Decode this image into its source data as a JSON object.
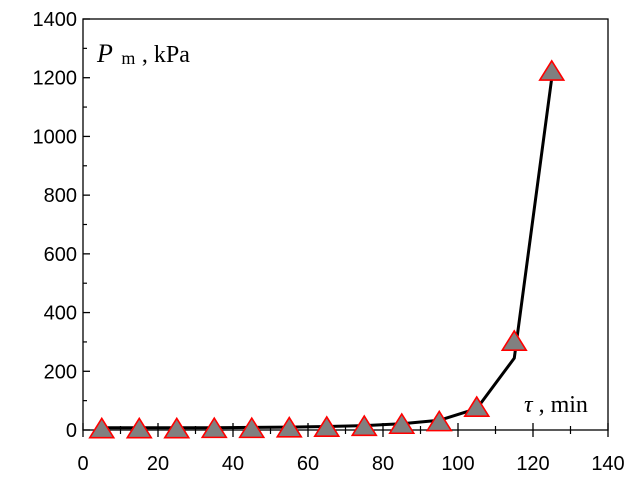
{
  "chart_data": {
    "type": "line",
    "title": "",
    "ylabel": {
      "symbol": "P",
      "subscript": "m",
      "unit": ", kPa"
    },
    "xlabel": {
      "symbol": "τ",
      "unit": ", min"
    },
    "xlim": [
      0,
      140
    ],
    "ylim": [
      0,
      1400
    ],
    "x_ticks": [
      0,
      20,
      40,
      60,
      80,
      100,
      120,
      140
    ],
    "y_ticks": [
      0,
      200,
      400,
      600,
      800,
      1000,
      1200,
      1400
    ],
    "x_tick_labels": [
      "0",
      "20",
      "40",
      "60",
      "80",
      "100",
      "120",
      "140"
    ],
    "y_tick_labels": [
      "0",
      "200",
      "400",
      "600",
      "800",
      "1000",
      "1200",
      "1400"
    ],
    "grid": false,
    "series": [
      {
        "role": "line",
        "color": "#000000",
        "x": [
          5,
          15,
          25,
          35,
          45,
          55,
          65,
          75,
          85,
          95,
          105,
          115,
          125
        ],
        "y": [
          8,
          8,
          8,
          8,
          9,
          10,
          12,
          15,
          21,
          33,
          73,
          245,
          1200
        ]
      },
      {
        "role": "markers",
        "marker": "triangle",
        "fill": "#808080",
        "stroke": "#ff0000",
        "x": [
          5,
          15,
          25,
          35,
          45,
          55,
          65,
          75,
          85,
          95,
          105,
          115,
          125
        ],
        "y": [
          2,
          2,
          2,
          3,
          3,
          5,
          7,
          10,
          17,
          26,
          75,
          300,
          1220
        ]
      }
    ]
  }
}
